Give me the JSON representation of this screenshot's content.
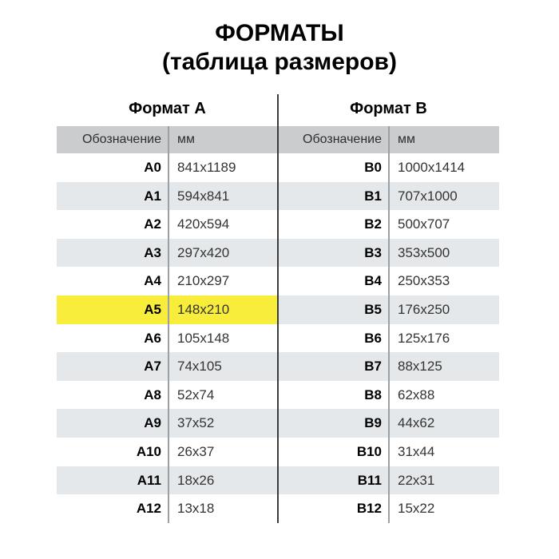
{
  "title": {
    "line1": "ФОРМАТЫ",
    "line2": "(таблица размеров)"
  },
  "chart_data": {
    "type": "table",
    "tables": [
      {
        "title": "Формат А",
        "headers": {
          "designation": "Обозначение",
          "mm": "мм"
        },
        "highlighted_row": "A5",
        "rows": [
          [
            "A0",
            "841x1189"
          ],
          [
            "A1",
            "594x841"
          ],
          [
            "A2",
            "420x594"
          ],
          [
            "A3",
            "297x420"
          ],
          [
            "A4",
            "210x297"
          ],
          [
            "A5",
            "148x210"
          ],
          [
            "A6",
            "105x148"
          ],
          [
            "A7",
            "74x105"
          ],
          [
            "A8",
            "52x74"
          ],
          [
            "A9",
            "37x52"
          ],
          [
            "A10",
            "26x37"
          ],
          [
            "A11",
            "18x26"
          ],
          [
            "A12",
            "13x18"
          ]
        ]
      },
      {
        "title": "Формат В",
        "headers": {
          "designation": "Обозначение",
          "mm": "мм"
        },
        "highlighted_row": null,
        "rows": [
          [
            "B0",
            "1000x1414"
          ],
          [
            "B1",
            "707x1000"
          ],
          [
            "B2",
            "500x707"
          ],
          [
            "B3",
            "353x500"
          ],
          [
            "B4",
            "250x353"
          ],
          [
            "B5",
            "176x250"
          ],
          [
            "B6",
            "125x176"
          ],
          [
            "B7",
            "88x125"
          ],
          [
            "B8",
            "62x88"
          ],
          [
            "B9",
            "44x62"
          ],
          [
            "B10",
            "31x44"
          ],
          [
            "B11",
            "22x31"
          ],
          [
            "B12",
            "15x22"
          ]
        ]
      }
    ]
  },
  "colors": {
    "header_row_bg": "#cbcccd",
    "stripe_bg": "#e5e8ea",
    "highlight_bg": "#f8ed3b",
    "center_divider": "#3b3b3b",
    "column_divider": "#9aa0a4",
    "text_primary": "#000000",
    "text_secondary": "#333333",
    "page_bg": "#ffffff"
  }
}
